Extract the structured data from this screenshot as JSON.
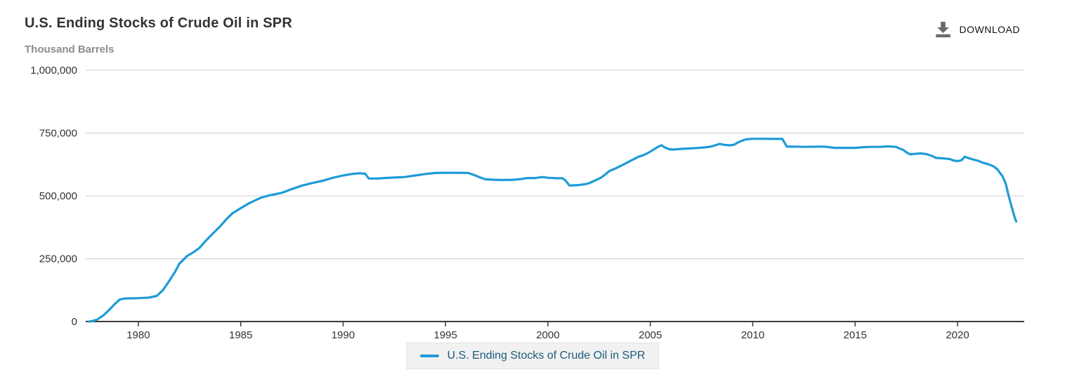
{
  "header": {
    "title": "U.S. Ending Stocks of Crude Oil in SPR",
    "units": "Thousand Barrels",
    "download_label": "DOWNLOAD"
  },
  "legend": {
    "label": "U.S. Ending Stocks of Crude Oil in SPR"
  },
  "colors": {
    "line": "#1f9bd7",
    "grid": "#cccccc",
    "axis": "#3a3a3a",
    "axis_text": "#333333",
    "title_text": "#333333",
    "subtitle_text": "#8c8c8c",
    "legend_text": "#1d5b7c",
    "legend_bg": "#f1f1f1",
    "legend_border": "#e2e2e2",
    "download_icon": "#6b6b6b",
    "download_text": "#111111"
  },
  "chart_data": {
    "type": "line",
    "title": "U.S. Ending Stocks of Crude Oil in SPR",
    "ylabel": "Thousand Barrels",
    "xlabel": "",
    "ylim": [
      0,
      1000000
    ],
    "xlim": [
      1977.43,
      2023.26
    ],
    "grid": "horizontal-only",
    "legend_position": "bottom-center",
    "y_ticks": [
      {
        "value": 0,
        "label": "0"
      },
      {
        "value": 250000,
        "label": "250,000"
      },
      {
        "value": 500000,
        "label": "500,000"
      },
      {
        "value": 750000,
        "label": "750,000"
      },
      {
        "value": 1000000,
        "label": "1,000,000"
      }
    ],
    "x_ticks": [
      {
        "value": 1980,
        "label": "1980"
      },
      {
        "value": 1985,
        "label": "1985"
      },
      {
        "value": 1990,
        "label": "1990"
      },
      {
        "value": 1995,
        "label": "1995"
      },
      {
        "value": 2000,
        "label": "2000"
      },
      {
        "value": 2005,
        "label": "2005"
      },
      {
        "value": 2010,
        "label": "2010"
      },
      {
        "value": 2015,
        "label": "2015"
      },
      {
        "value": 2020,
        "label": "2020"
      }
    ],
    "series": [
      {
        "name": "U.S. Ending Stocks of Crude Oil in SPR",
        "color": "#1f9bd7",
        "units": "thousand barrels",
        "points": [
          [
            1977.6,
            0
          ],
          [
            1977.8,
            3000
          ],
          [
            1978.0,
            8000
          ],
          [
            1978.3,
            25000
          ],
          [
            1978.6,
            48000
          ],
          [
            1978.85,
            70000
          ],
          [
            1979.1,
            88000
          ],
          [
            1979.4,
            92000
          ],
          [
            1980.0,
            93000
          ],
          [
            1980.5,
            95000
          ],
          [
            1980.9,
            102000
          ],
          [
            1981.2,
            125000
          ],
          [
            1981.5,
            160000
          ],
          [
            1981.8,
            199000
          ],
          [
            1982.0,
            230000
          ],
          [
            1982.4,
            262000
          ],
          [
            1982.7,
            276000
          ],
          [
            1983.0,
            294000
          ],
          [
            1983.3,
            322000
          ],
          [
            1983.6,
            347000
          ],
          [
            1984.0,
            379000
          ],
          [
            1984.3,
            407000
          ],
          [
            1984.6,
            431000
          ],
          [
            1985.0,
            451000
          ],
          [
            1985.4,
            470000
          ],
          [
            1985.7,
            482000
          ],
          [
            1986.0,
            493000
          ],
          [
            1986.4,
            502000
          ],
          [
            1987.0,
            512000
          ],
          [
            1987.5,
            527000
          ],
          [
            1988.0,
            541000
          ],
          [
            1988.5,
            551000
          ],
          [
            1989.0,
            560000
          ],
          [
            1989.5,
            572000
          ],
          [
            1990.0,
            581000
          ],
          [
            1990.4,
            587000
          ],
          [
            1990.8,
            590000
          ],
          [
            1991.08,
            588000
          ],
          [
            1991.25,
            569000
          ],
          [
            1991.7,
            569000
          ],
          [
            1992.0,
            571000
          ],
          [
            1992.5,
            573000
          ],
          [
            1993.0,
            575000
          ],
          [
            1993.5,
            581000
          ],
          [
            1994.0,
            587000
          ],
          [
            1994.5,
            591000
          ],
          [
            1995.0,
            592000
          ],
          [
            1995.6,
            592000
          ],
          [
            1996.1,
            591000
          ],
          [
            1996.4,
            583000
          ],
          [
            1996.7,
            573000
          ],
          [
            1996.95,
            566000
          ],
          [
            1997.4,
            564000
          ],
          [
            1997.8,
            563000
          ],
          [
            1998.3,
            564000
          ],
          [
            1998.7,
            567000
          ],
          [
            1999.0,
            571000
          ],
          [
            1999.4,
            571000
          ],
          [
            1999.7,
            575000
          ],
          [
            2000.0,
            572000
          ],
          [
            2000.4,
            570000
          ],
          [
            2000.7,
            570000
          ],
          [
            2000.85,
            562000
          ],
          [
            2001.05,
            541000
          ],
          [
            2001.5,
            543000
          ],
          [
            2001.8,
            546000
          ],
          [
            2002.0,
            550000
          ],
          [
            2002.3,
            561000
          ],
          [
            2002.6,
            573000
          ],
          [
            2002.85,
            588000
          ],
          [
            2003.0,
            599000
          ],
          [
            2003.3,
            609000
          ],
          [
            2003.6,
            621000
          ],
          [
            2004.0,
            638000
          ],
          [
            2004.2,
            646000
          ],
          [
            2004.4,
            655000
          ],
          [
            2004.6,
            660000
          ],
          [
            2004.8,
            667000
          ],
          [
            2005.0,
            676000
          ],
          [
            2005.2,
            686000
          ],
          [
            2005.4,
            696000
          ],
          [
            2005.55,
            701000
          ],
          [
            2005.7,
            693000
          ],
          [
            2005.9,
            686000
          ],
          [
            2006.1,
            684000
          ],
          [
            2006.5,
            687000
          ],
          [
            2007.0,
            689000
          ],
          [
            2007.4,
            691000
          ],
          [
            2007.8,
            694000
          ],
          [
            2008.0,
            697000
          ],
          [
            2008.2,
            702000
          ],
          [
            2008.4,
            707000
          ],
          [
            2008.6,
            703000
          ],
          [
            2008.9,
            701000
          ],
          [
            2009.1,
            704000
          ],
          [
            2009.3,
            713000
          ],
          [
            2009.5,
            720000
          ],
          [
            2009.7,
            725000
          ],
          [
            2010.0,
            727000
          ],
          [
            2010.5,
            727000
          ],
          [
            2011.0,
            726500
          ],
          [
            2011.45,
            726500
          ],
          [
            2011.67,
            695900
          ],
          [
            2012.0,
            696000
          ],
          [
            2012.5,
            695000
          ],
          [
            2013.0,
            695500
          ],
          [
            2013.5,
            696000
          ],
          [
            2014.0,
            691000
          ],
          [
            2014.5,
            691000
          ],
          [
            2015.0,
            691000
          ],
          [
            2015.4,
            693500
          ],
          [
            2015.8,
            695000
          ],
          [
            2016.2,
            695100
          ],
          [
            2016.6,
            697000
          ],
          [
            2017.0,
            695000
          ],
          [
            2017.15,
            689000
          ],
          [
            2017.35,
            683000
          ],
          [
            2017.55,
            671000
          ],
          [
            2017.7,
            665000
          ],
          [
            2017.9,
            667000
          ],
          [
            2018.2,
            669000
          ],
          [
            2018.5,
            666000
          ],
          [
            2018.75,
            659000
          ],
          [
            2018.95,
            651000
          ],
          [
            2019.3,
            649000
          ],
          [
            2019.6,
            647000
          ],
          [
            2019.8,
            641000
          ],
          [
            2020.0,
            638000
          ],
          [
            2020.2,
            642000
          ],
          [
            2020.35,
            656000
          ],
          [
            2020.55,
            650000
          ],
          [
            2020.75,
            645000
          ],
          [
            2021.0,
            640000
          ],
          [
            2021.2,
            633000
          ],
          [
            2021.5,
            626000
          ],
          [
            2021.75,
            618000
          ],
          [
            2021.95,
            606000
          ],
          [
            2022.05,
            594000
          ],
          [
            2022.2,
            578000
          ],
          [
            2022.35,
            550000
          ],
          [
            2022.5,
            500000
          ],
          [
            2022.65,
            455000
          ],
          [
            2022.8,
            412000
          ],
          [
            2022.87,
            398000
          ]
        ]
      }
    ]
  }
}
